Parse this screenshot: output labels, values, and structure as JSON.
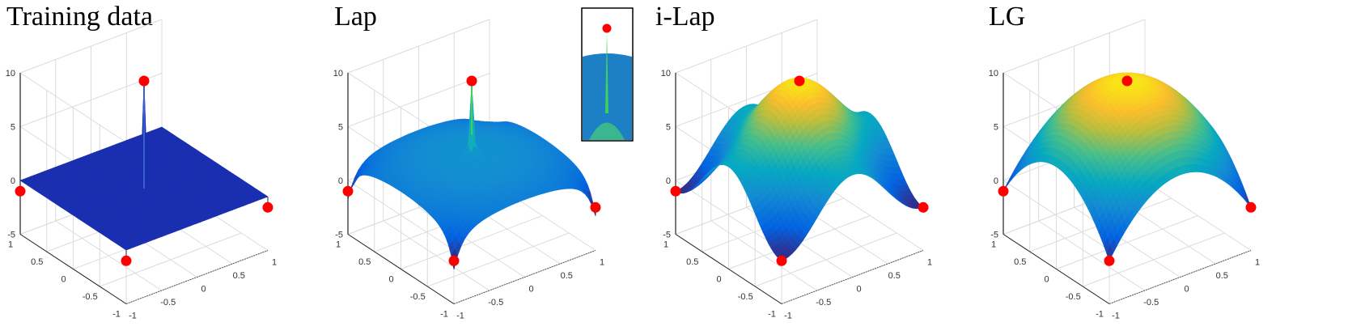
{
  "chart_data": [
    {
      "type": "surface",
      "title": "Training data",
      "xlim": [
        -1,
        1
      ],
      "ylim": [
        -1,
        1
      ],
      "zlim": [
        -5,
        10
      ],
      "x_ticks": [
        "-1",
        "-0.5",
        "0",
        "0.5",
        "1"
      ],
      "y_ticks": [
        "-1",
        "-0.5",
        "0",
        "0.5",
        "1"
      ],
      "z_ticks": [
        "-5",
        "0",
        "5",
        "10"
      ],
      "training_points": [
        [
          0,
          0,
          10
        ],
        [
          -1,
          1,
          -1
        ],
        [
          -1,
          -1,
          -1
        ],
        [
          1,
          -1,
          -1
        ]
      ],
      "surface": "flat at 0 with a thin spike at the center",
      "grid": true
    },
    {
      "type": "surface",
      "title": "Lap",
      "xlim": [
        -1,
        1
      ],
      "ylim": [
        -1,
        1
      ],
      "zlim": [
        -5,
        10
      ],
      "x_ticks": [
        "-1",
        "-0.5",
        "0",
        "0.5",
        "1"
      ],
      "y_ticks": [
        "-1",
        "-0.5",
        "0",
        "0.5",
        "1"
      ],
      "z_ticks": [
        "-5",
        "0",
        "5",
        "10"
      ],
      "training_points": [
        [
          0,
          0,
          10
        ],
        [
          -1,
          1,
          -1
        ],
        [
          -1,
          -1,
          -1
        ],
        [
          1,
          -1,
          -1
        ]
      ],
      "surface": "low dome with a sharp spike at the center and cusps at the corners",
      "inset": "close-up of the center spike",
      "grid": true
    },
    {
      "type": "surface",
      "title": "i-Lap",
      "xlim": [
        -1,
        1
      ],
      "ylim": [
        -1,
        1
      ],
      "zlim": [
        -5,
        10
      ],
      "x_ticks": [
        "-1",
        "-0.5",
        "0",
        "0.5",
        "1"
      ],
      "y_ticks": [
        "-1",
        "-0.5",
        "0",
        "0.5",
        "1"
      ],
      "z_ticks": [
        "-5",
        "0",
        "5",
        "10"
      ],
      "training_points": [
        [
          0,
          0,
          10
        ],
        [
          -1,
          1,
          -1
        ],
        [
          -1,
          -1,
          -1
        ],
        [
          1,
          -1,
          -1
        ]
      ],
      "surface": "smooth peak at the center with bumps at the edge midpoints",
      "grid": true
    },
    {
      "type": "surface",
      "title": "LG",
      "xlim": [
        -1,
        1
      ],
      "ylim": [
        -1,
        1
      ],
      "zlim": [
        -5,
        10
      ],
      "x_ticks": [
        "-1",
        "-0.5",
        "0",
        "0.5",
        "1"
      ],
      "y_ticks": [
        "-1",
        "-0.5",
        "0",
        "0.5",
        "1"
      ],
      "z_ticks": [
        "-5",
        "0",
        "5",
        "10"
      ],
      "training_points": [
        [
          0,
          0,
          10
        ],
        [
          -1,
          1,
          -1
        ],
        [
          -1,
          -1,
          -1
        ],
        [
          1,
          -1,
          -1
        ]
      ],
      "surface": "smooth dome",
      "grid": true
    }
  ],
  "colors": {
    "point": "#ff0000",
    "colormap": "parula"
  }
}
